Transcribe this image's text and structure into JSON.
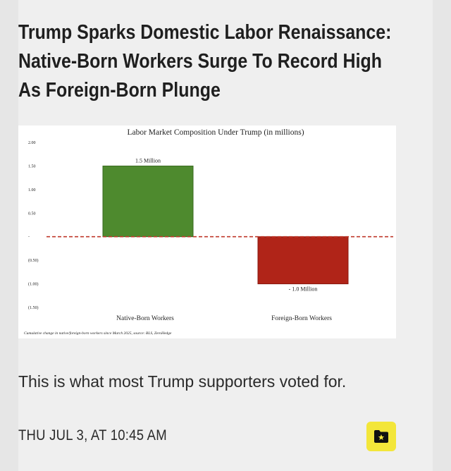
{
  "article": {
    "headline": "Trump Sparks Domestic Labor Renaissance: Native-Born Workers Surge To Record High As Foreign-Born Plunge",
    "caption": "This is what most Trump supporters voted for.",
    "timestamp": "THU JUL 3, AT 10:45 AM"
  },
  "colors": {
    "accent_button": "#f3e63a",
    "native_bar": "#4e8a2e",
    "foreign_bar": "#b02418",
    "zero_line": "#c0392b"
  },
  "icons": {
    "save": "folder-star-icon"
  },
  "chart_data": {
    "type": "bar",
    "title": "Labor Market Composition Under Trump (in millions)",
    "categories": [
      "Native-Born Workers",
      "Foreign-Born Workers"
    ],
    "values": [
      1.5,
      -1.0
    ],
    "data_labels": [
      "1.5 Million",
      "- 1.0 Million"
    ],
    "ylim": [
      -1.5,
      2.0
    ],
    "yticks": [
      2.0,
      1.5,
      1.0,
      0.5,
      0,
      -0.5,
      -1.0,
      -1.5
    ],
    "ytick_labels": [
      "2.00",
      "1.50",
      "1.00",
      "0.50",
      "-",
      "(0.50)",
      "(1.00)",
      "(1.50)"
    ],
    "source": "Cumulative change in native/foreign-born workers since March 2025, source: BLS, ZeroHedge",
    "grid": false
  }
}
